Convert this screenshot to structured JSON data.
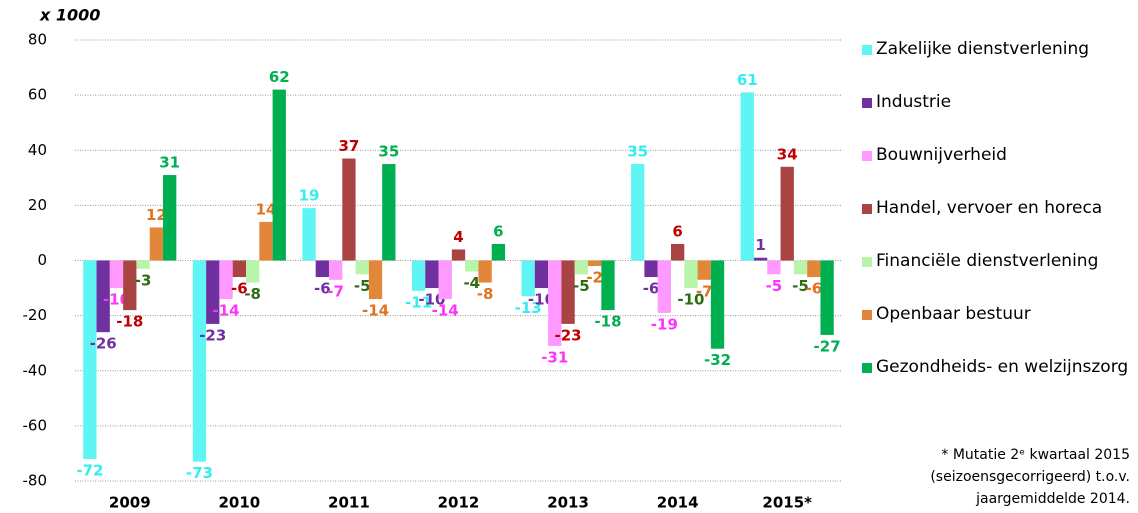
{
  "chart_data": {
    "type": "bar",
    "y_label": "x 1000",
    "categories": [
      "2009",
      "2010",
      "2011",
      "2012",
      "2013",
      "2014",
      "2015*"
    ],
    "series": [
      {
        "name": "Zakelijke dienstverlening",
        "color": "#5ff5f5",
        "label_color": "#33eeee",
        "values": [
          -72,
          -73,
          19,
          -11,
          -13,
          35,
          61
        ]
      },
      {
        "name": "Industrie",
        "color": "#7030a0",
        "label_color": "#7030a0",
        "values": [
          -26,
          -23,
          -6,
          -10,
          -10,
          -6,
          1
        ]
      },
      {
        "name": "Bouwnijverheid",
        "color": "#ff99ff",
        "label_color": "#ff33ff",
        "values": [
          -10,
          -14,
          -7,
          -14,
          -31,
          -19,
          -5
        ]
      },
      {
        "name": "Handel, vervoer en horeca",
        "color": "#a94442",
        "label_color": "#c00000",
        "values": [
          -18,
          -6,
          37,
          4,
          -23,
          6,
          34
        ]
      },
      {
        "name": "Financiële dienstverlening",
        "color": "#b8f5a8",
        "label_color": "#2e6b12",
        "values": [
          -3,
          -8,
          -5,
          -4,
          -5,
          -10,
          -5
        ]
      },
      {
        "name": "Openbaar bestuur",
        "color": "#e2873a",
        "label_color": "#e2731e",
        "values": [
          12,
          14,
          -14,
          -8,
          -2,
          -7,
          -6
        ]
      },
      {
        "name": "Gezondheids- en welzijnszorg",
        "color": "#00b050",
        "label_color": "#00b050",
        "values": [
          31,
          62,
          35,
          6,
          -18,
          -32,
          -27
        ]
      }
    ],
    "ylim": [
      -80,
      80
    ],
    "yticks": [
      -80,
      -60,
      -40,
      -20,
      0,
      20,
      40,
      60,
      80
    ],
    "grid": true,
    "footnote": [
      "* Mutatie 2ᵉ kwartaal 2015",
      "(seizoensgecorrigeerd) t.o.v.",
      "jaargemiddelde 2014."
    ]
  }
}
